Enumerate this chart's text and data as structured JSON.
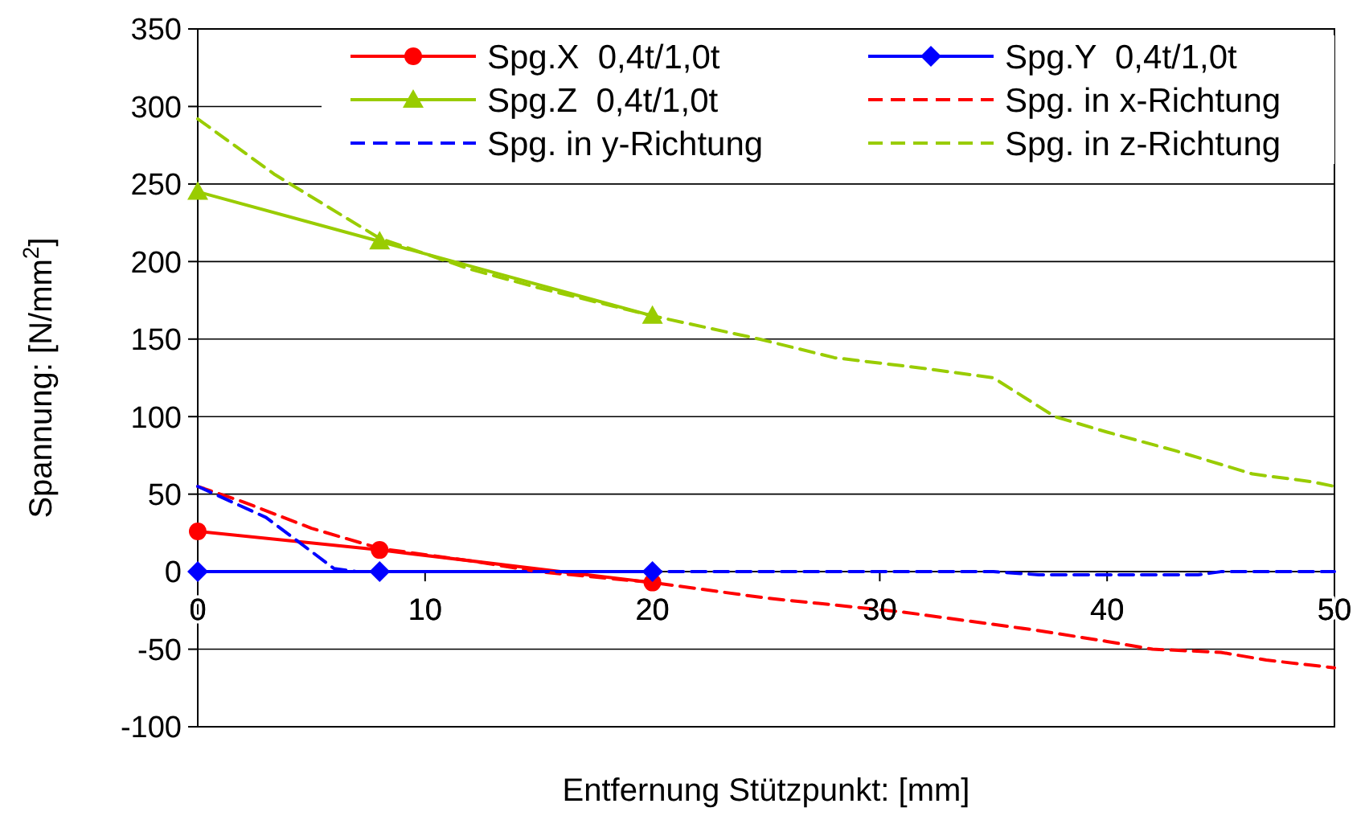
{
  "chart_data": {
    "type": "line",
    "xlabel": "Entfernung Stützpunkt: [mm]",
    "ylabel": "Spannung: [N/mm$^{2}$]",
    "xlim": [
      0,
      50
    ],
    "xticks": [
      0,
      10,
      20,
      30,
      40,
      50
    ],
    "ylim": [
      -100,
      350
    ],
    "yticks": [
      -100,
      -50,
      0,
      50,
      100,
      150,
      200,
      250,
      300,
      350
    ],
    "grid": "y",
    "legend": "top",
    "series": [
      {
        "name": "Spg.X  0,4t/1,0t",
        "color": "#ff0000",
        "x": [
          0,
          8,
          20
        ],
        "values": [
          26,
          14,
          -7
        ],
        "marker": "circle",
        "line_style": "solid"
      },
      {
        "name": "Spg.Y  0,4t/1,0t",
        "color": "#0000ff",
        "x": [
          0,
          8,
          20
        ],
        "values": [
          0,
          0,
          0
        ],
        "marker": "diamond",
        "line_style": "solid"
      },
      {
        "name": "Spg.Z  0,4t/1,0t",
        "color": "#99cc00",
        "x": [
          0,
          8,
          20
        ],
        "values": [
          245,
          213,
          165
        ],
        "marker": "triangle",
        "line_style": "solid"
      },
      {
        "name": "Spg. in x-Richtung",
        "color": "#ff0000",
        "x": [
          0,
          2,
          5,
          8,
          12,
          15,
          20,
          25,
          31,
          37,
          40,
          42,
          45,
          47,
          50
        ],
        "values": [
          55,
          45,
          28,
          15,
          7,
          0,
          -7,
          -17,
          -26,
          -38,
          -45,
          -50,
          -52,
          -57,
          -62
        ],
        "marker": "none",
        "line_style": "dashed"
      },
      {
        "name": "Spg. in y-Richtung",
        "color": "#0000ff",
        "x": [
          0,
          3,
          6,
          7,
          20,
          35,
          37,
          44,
          45,
          50
        ],
        "values": [
          55,
          35,
          2,
          0,
          0,
          0,
          -2,
          -2,
          0,
          0
        ],
        "marker": "none",
        "line_style": "dashed"
      },
      {
        "name": "Spg. in z-Richtung",
        "color": "#99cc00",
        "x": [
          0,
          3.4,
          8,
          12,
          15,
          20,
          24.7,
          28,
          32,
          35,
          37.7,
          40,
          43,
          46.4,
          49,
          50
        ],
        "values": [
          292,
          256,
          215,
          195,
          183,
          165,
          150,
          138,
          131,
          125,
          100,
          90,
          78,
          63,
          58,
          55
        ],
        "marker": "none",
        "line_style": "dashed"
      }
    ]
  }
}
